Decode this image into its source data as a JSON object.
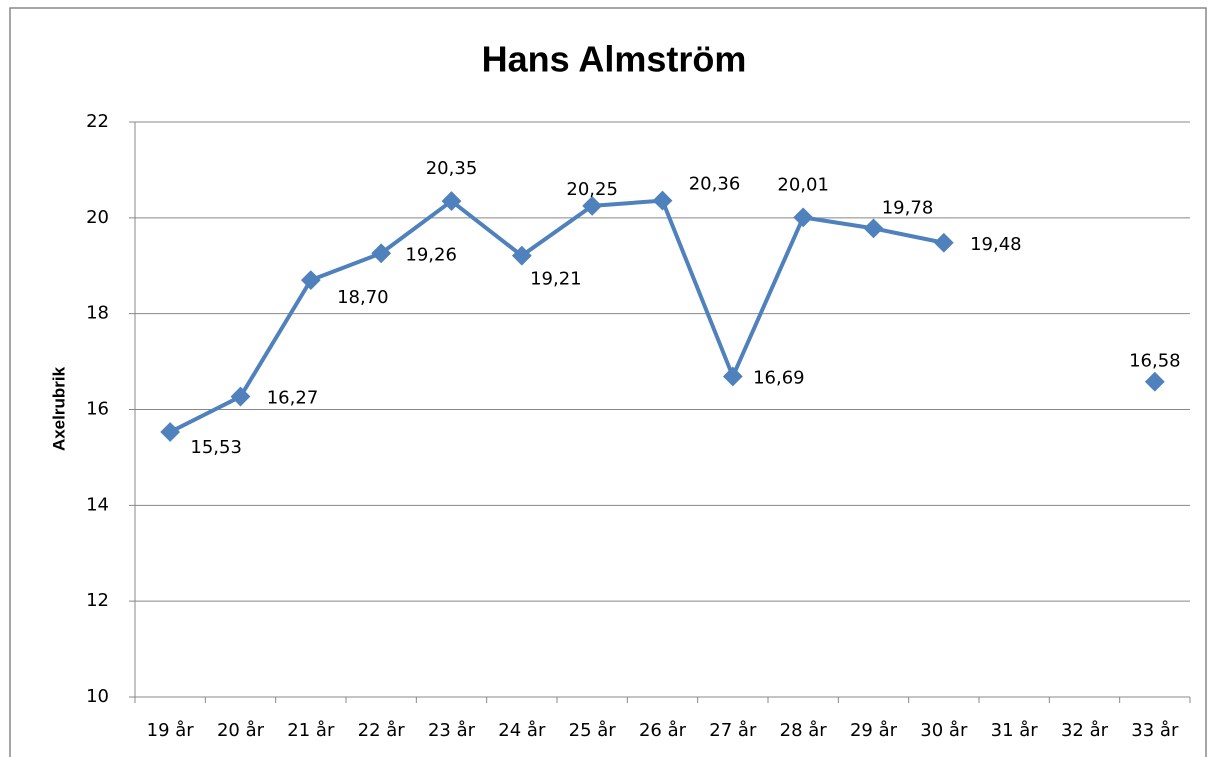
{
  "chart_data": {
    "type": "line",
    "title": "Hans Almström",
    "y_label": "Axelrubrik",
    "categories": [
      "19 år",
      "20 år",
      "21 år",
      "22 år",
      "23 år",
      "24 år",
      "25 år",
      "26 år",
      "27 år",
      "28 år",
      "29 år",
      "30 år",
      "31 år",
      "32 år",
      "33 år"
    ],
    "series": [
      {
        "name": "Hans Almström",
        "color": "#4f81bd",
        "values": [
          15.53,
          16.27,
          18.7,
          19.26,
          20.35,
          19.21,
          20.25,
          20.36,
          16.69,
          20.01,
          19.78,
          19.48,
          null,
          null,
          16.58
        ],
        "value_labels": [
          "15,53",
          "16,27",
          "18,70",
          "19,26",
          "20,35",
          "19,21",
          "20,25",
          "20,36",
          "16,69",
          "20,01",
          "19,78",
          "19,48",
          null,
          null,
          "16,58"
        ]
      }
    ],
    "ylim": [
      10,
      22
    ],
    "yticks": [
      10,
      12,
      14,
      16,
      18,
      20,
      22
    ],
    "grid": true
  }
}
